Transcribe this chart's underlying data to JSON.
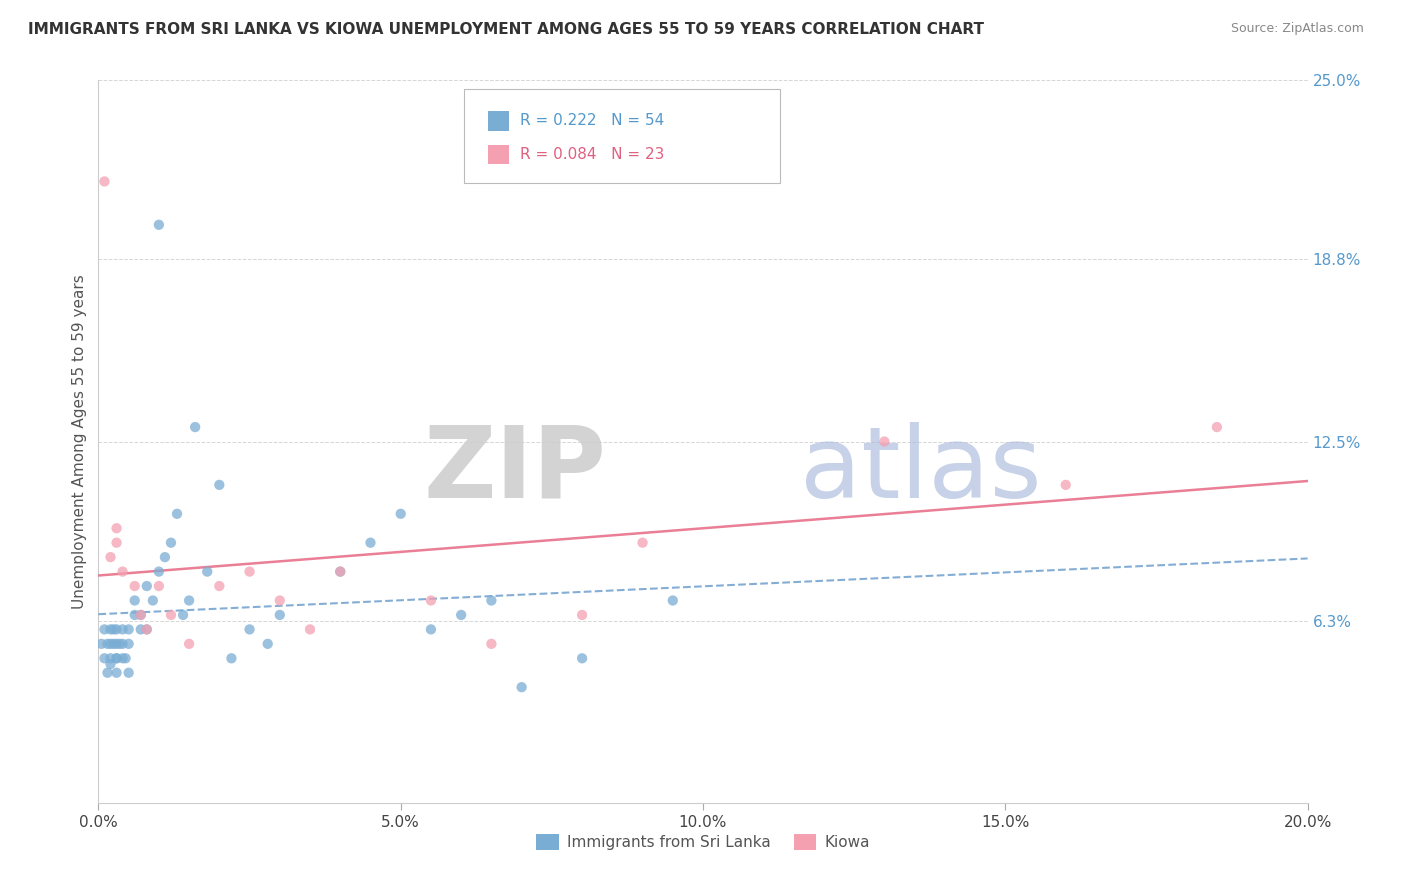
{
  "title": "IMMIGRANTS FROM SRI LANKA VS KIOWA UNEMPLOYMENT AMONG AGES 55 TO 59 YEARS CORRELATION CHART",
  "source": "Source: ZipAtlas.com",
  "ylabel": "Unemployment Among Ages 55 to 59 years",
  "legend_labels": [
    "Immigrants from Sri Lanka",
    "Kiowa"
  ],
  "series1_R": 0.222,
  "series1_N": 54,
  "series2_R": 0.084,
  "series2_N": 23,
  "color_blue": "#7aadd4",
  "color_pink": "#f4a0b0",
  "trendline1_color": "#6699cc",
  "trendline2_color": "#e8708a",
  "xmin": 0.0,
  "xmax": 0.2,
  "ymin": 0.0,
  "ymax": 0.25,
  "yticks_right": [
    0.063,
    0.125,
    0.188,
    0.25
  ],
  "ytick_right_labels": [
    "6.3%",
    "12.5%",
    "18.8%",
    "25.0%"
  ],
  "xticks": [
    0.0,
    0.05,
    0.1,
    0.15,
    0.2
  ],
  "xtick_labels": [
    "0.0%",
    "5.0%",
    "10.0%",
    "15.0%",
    "20.0%"
  ],
  "blue_points_x": [
    0.0005,
    0.001,
    0.001,
    0.0015,
    0.0015,
    0.002,
    0.002,
    0.002,
    0.002,
    0.0025,
    0.0025,
    0.003,
    0.003,
    0.003,
    0.003,
    0.003,
    0.0035,
    0.004,
    0.004,
    0.004,
    0.0045,
    0.005,
    0.005,
    0.005,
    0.006,
    0.006,
    0.007,
    0.007,
    0.008,
    0.008,
    0.009,
    0.01,
    0.01,
    0.011,
    0.012,
    0.013,
    0.014,
    0.015,
    0.016,
    0.018,
    0.02,
    0.022,
    0.025,
    0.028,
    0.03,
    0.04,
    0.045,
    0.05,
    0.055,
    0.06,
    0.065,
    0.07,
    0.08,
    0.095
  ],
  "blue_points_y": [
    0.055,
    0.06,
    0.05,
    0.055,
    0.045,
    0.048,
    0.055,
    0.06,
    0.05,
    0.055,
    0.06,
    0.05,
    0.055,
    0.06,
    0.045,
    0.05,
    0.055,
    0.05,
    0.06,
    0.055,
    0.05,
    0.055,
    0.06,
    0.045,
    0.065,
    0.07,
    0.06,
    0.065,
    0.075,
    0.06,
    0.07,
    0.08,
    0.2,
    0.085,
    0.09,
    0.1,
    0.065,
    0.07,
    0.13,
    0.08,
    0.11,
    0.05,
    0.06,
    0.055,
    0.065,
    0.08,
    0.09,
    0.1,
    0.06,
    0.065,
    0.07,
    0.04,
    0.05,
    0.07
  ],
  "pink_points_x": [
    0.001,
    0.002,
    0.003,
    0.003,
    0.004,
    0.006,
    0.007,
    0.008,
    0.01,
    0.012,
    0.015,
    0.02,
    0.025,
    0.03,
    0.035,
    0.04,
    0.055,
    0.065,
    0.08,
    0.09,
    0.13,
    0.16,
    0.185
  ],
  "pink_points_y": [
    0.215,
    0.085,
    0.09,
    0.095,
    0.08,
    0.075,
    0.065,
    0.06,
    0.075,
    0.065,
    0.055,
    0.075,
    0.08,
    0.07,
    0.06,
    0.08,
    0.07,
    0.055,
    0.065,
    0.09,
    0.125,
    0.11,
    0.13
  ],
  "watermark_ZIP": "ZIP",
  "watermark_atlas": "atlas",
  "background_color": "#FFFFFF",
  "grid_color": "#cccccc"
}
